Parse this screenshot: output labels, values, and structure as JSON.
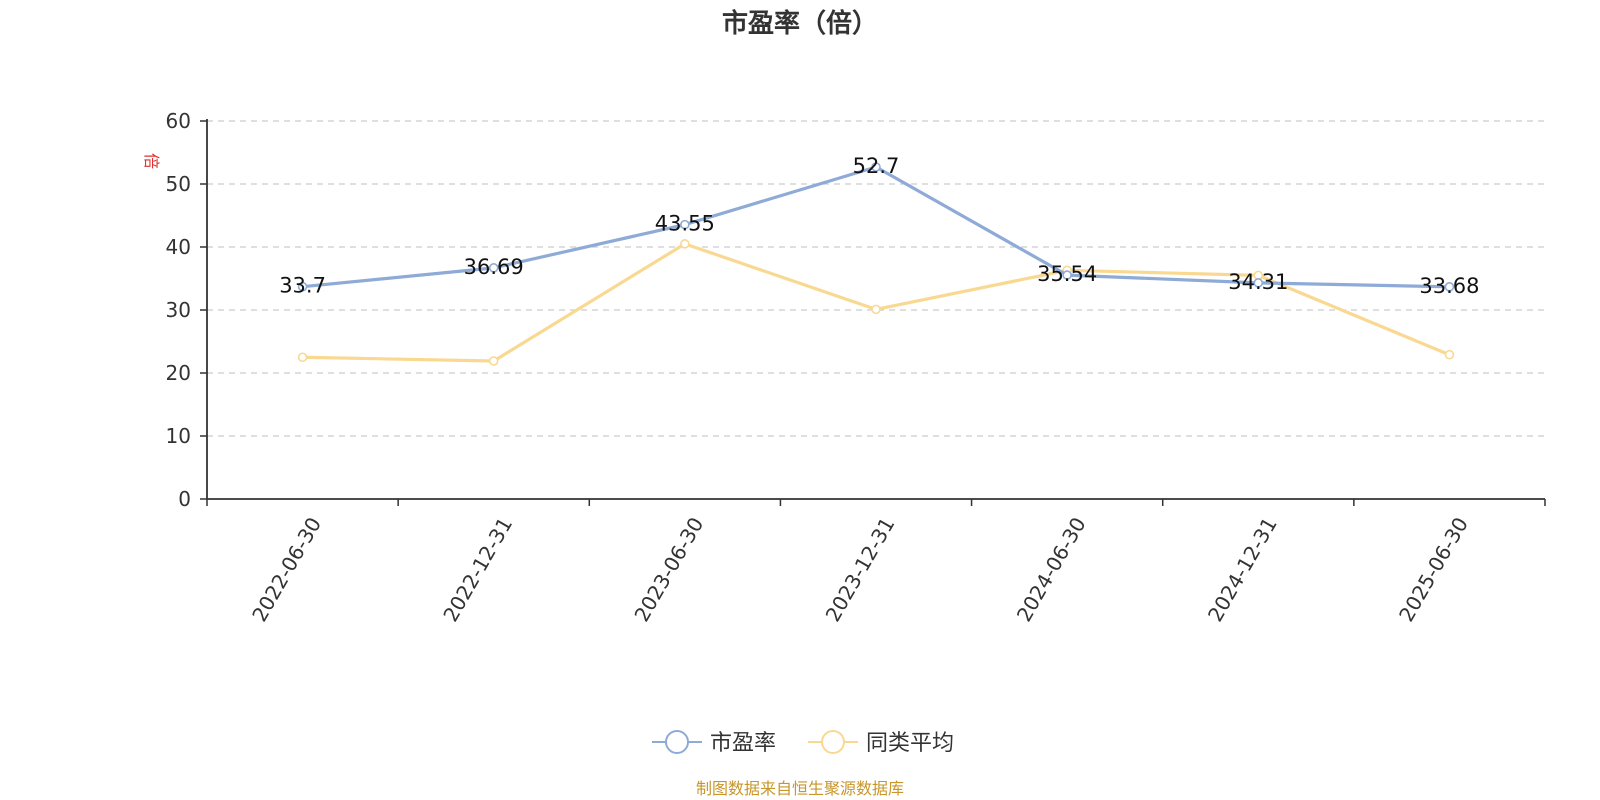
{
  "chart_data": {
    "type": "line",
    "title": "市盈率（倍）",
    "ylabel": "倍",
    "x": [
      "2022-06-30",
      "2022-12-31",
      "2023-06-30",
      "2023-12-31",
      "2024-06-30",
      "2024-12-31",
      "2025-06-30"
    ],
    "ylim": [
      0,
      60
    ],
    "yticks": [
      0,
      10,
      20,
      30,
      40,
      50,
      60
    ],
    "grid": true,
    "legend_position": "bottom-center",
    "series": [
      {
        "name": "市盈率",
        "color": "#8eaad6",
        "values": [
          33.7,
          36.69,
          43.55,
          52.7,
          35.54,
          34.31,
          33.68
        ],
        "labels": [
          "33.7",
          "36.69",
          "43.55",
          "52.7",
          "35.54",
          "34.31",
          "33.68"
        ]
      },
      {
        "name": "同类平均",
        "color": "#f9d992",
        "values": [
          22.5,
          21.9,
          40.5,
          30.1,
          36.3,
          35.5,
          22.9
        ]
      }
    ]
  },
  "source": "制图数据来自恒生聚源数据库",
  "colors": {
    "ylabel": "#e03030",
    "source": "#c8962a",
    "axis": "#333333",
    "grid": "#cccccc"
  }
}
